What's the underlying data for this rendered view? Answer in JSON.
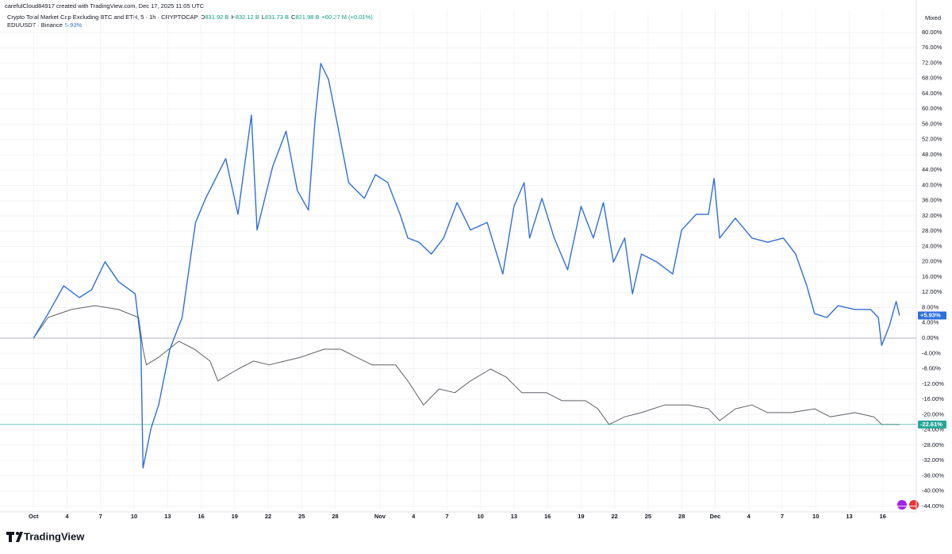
{
  "header": {
    "credit": "carefulCloud84917 created with TradingView.com, Dec 17, 2025 11:05 UTC",
    "brand": "TradingView"
  },
  "chart_data": {
    "type": "line",
    "legend_lines": [
      {
        "title": "Crypto Total Market Cap Excluding BTC and ETH, 5 · 1h · CRYPTOCAP",
        "fields": [
          {
            "label": "O",
            "value": "831.92 B"
          },
          {
            "label": "H",
            "value": "832.12 B"
          },
          {
            "label": "L",
            "value": "831.73 B"
          },
          {
            "label": "C",
            "value": "831.98 B"
          }
        ],
        "change": "+60.27 M (+0.01%)"
      },
      {
        "title": "EDUUSDT · Binance",
        "change": "5.93%"
      }
    ],
    "scale_mode": "Mixed",
    "xlim": [
      -3,
      79
    ],
    "xticks": [
      {
        "value": 0,
        "label": "Oct"
      },
      {
        "value": 3,
        "label": "4"
      },
      {
        "value": 6,
        "label": "7"
      },
      {
        "value": 9,
        "label": "10"
      },
      {
        "value": 12,
        "label": "13"
      },
      {
        "value": 15,
        "label": "16"
      },
      {
        "value": 18,
        "label": "19"
      },
      {
        "value": 21,
        "label": "22"
      },
      {
        "value": 24,
        "label": "25"
      },
      {
        "value": 27,
        "label": "28"
      },
      {
        "value": 31,
        "label": "Nov"
      },
      {
        "value": 34,
        "label": "4"
      },
      {
        "value": 37,
        "label": "7"
      },
      {
        "value": 40,
        "label": "10"
      },
      {
        "value": 43,
        "label": "13"
      },
      {
        "value": 46,
        "label": "16"
      },
      {
        "value": 49,
        "label": "19"
      },
      {
        "value": 52,
        "label": "22"
      },
      {
        "value": 55,
        "label": "25"
      },
      {
        "value": 58,
        "label": "28"
      },
      {
        "value": 61,
        "label": "Dec"
      },
      {
        "value": 64,
        "label": "4"
      },
      {
        "value": 67,
        "label": "7"
      },
      {
        "value": 70,
        "label": "10"
      },
      {
        "value": 73,
        "label": "13"
      },
      {
        "value": 76,
        "label": "16"
      }
    ],
    "ylim": [
      -45,
      86
    ],
    "yticks": [
      {
        "value": 80,
        "label": "80.00%"
      },
      {
        "value": 76,
        "label": "76.00%"
      },
      {
        "value": 72,
        "label": "72.00%"
      },
      {
        "value": 68,
        "label": "68.00%"
      },
      {
        "value": 64,
        "label": "64.00%"
      },
      {
        "value": 60,
        "label": "60.00%"
      },
      {
        "value": 56,
        "label": "56.00%"
      },
      {
        "value": 52,
        "label": "52.00%"
      },
      {
        "value": 48,
        "label": "48.00%"
      },
      {
        "value": 44,
        "label": "44.00%"
      },
      {
        "value": 40,
        "label": "40.00%"
      },
      {
        "value": 36,
        "label": "36.00%"
      },
      {
        "value": 32,
        "label": "32.00%"
      },
      {
        "value": 28,
        "label": "28.00%"
      },
      {
        "value": 24,
        "label": "24.00%"
      },
      {
        "value": 20,
        "label": "20.00%"
      },
      {
        "value": 16,
        "label": "16.00%"
      },
      {
        "value": 12,
        "label": "12.00%"
      },
      {
        "value": 8,
        "label": "8.00%"
      },
      {
        "value": 4,
        "label": "4.00%"
      },
      {
        "value": 0,
        "label": "0.00%"
      },
      {
        "value": -4,
        "label": "-4.00%"
      },
      {
        "value": -8,
        "label": "-8.00%"
      },
      {
        "value": -12,
        "label": "-12.00%"
      },
      {
        "value": -16,
        "label": "-16.00%"
      },
      {
        "value": -20,
        "label": "-20.00%"
      },
      {
        "value": -24,
        "label": "-24.00%"
      },
      {
        "value": -28,
        "label": "-28.00%"
      },
      {
        "value": -32,
        "label": "-32.00%"
      },
      {
        "value": -36,
        "label": "-36.00%"
      },
      {
        "value": -40,
        "label": "-40.00%"
      },
      {
        "value": -44,
        "label": "-44.00%"
      }
    ],
    "grid": true,
    "series": [
      {
        "name": "EDUUSDT · Binance",
        "color": "#2e6fdc",
        "width": 1.4,
        "x": [
          0,
          1.3,
          2.7,
          4.1,
          5.2,
          6.4,
          7.6,
          9.1,
          9.6,
          9.8,
          10.5,
          11.2,
          12.2,
          13.3,
          14,
          14.5,
          15.4,
          17.2,
          18.3,
          19.5,
          20,
          21.4,
          22.6,
          23.6,
          24.6,
          25.2,
          25.7,
          26.4,
          27.1,
          28.2,
          29.6,
          30.6,
          31.7,
          32.8,
          33.5,
          34.5,
          35.6,
          36.7,
          37.9,
          39.1,
          40.6,
          42,
          43,
          43.9,
          44.4,
          45.5,
          46.6,
          47.8,
          49,
          50.1,
          51,
          51.9,
          52.9,
          53.6,
          54.4,
          55.8,
          57.2,
          58,
          59.3,
          60.4,
          60.9,
          61.4,
          62.8,
          64.3,
          65.7,
          67.1,
          68.2,
          69.2,
          69.9,
          71,
          72,
          73.5,
          74.9,
          75.6,
          75.9,
          76.6,
          77.2,
          77.5
        ],
        "values": [
          0,
          6.4,
          13.7,
          10.6,
          12.7,
          20,
          14.8,
          11.6,
          -0.8,
          -34,
          -23.7,
          -17.5,
          -2.9,
          5.4,
          20,
          30.3,
          36.6,
          47,
          32.4,
          58.4,
          28.3,
          44.9,
          54.2,
          38.7,
          33.5,
          57.4,
          71.9,
          67.7,
          57.4,
          40.7,
          36.6,
          42.8,
          40.7,
          32.4,
          26.2,
          25.1,
          22,
          26.2,
          35.5,
          28.3,
          30.3,
          16.8,
          34.5,
          40.7,
          26.2,
          36.6,
          26.2,
          17.9,
          34.5,
          26.2,
          35.5,
          19.9,
          26.2,
          11.6,
          22,
          19.9,
          16.8,
          28.3,
          32.4,
          32.4,
          41.8,
          26.2,
          31.4,
          26.2,
          25.1,
          26.2,
          22,
          13.7,
          6.4,
          5.4,
          8.5,
          7.5,
          7.5,
          5.4,
          -1.9,
          3.3,
          9.6,
          5.93
        ],
        "last": {
          "value": 5.93,
          "label": "+5.93%"
        }
      },
      {
        "name": "Crypto Total Market Cap Excluding BTC and ETH, 5 · 1h · CRYPTOCAP",
        "color": "#5f6168",
        "width": 1,
        "x": [
          0,
          1.3,
          3.4,
          5.5,
          7.6,
          9.4,
          9.8,
          10.1,
          11.2,
          13,
          14.4,
          15.8,
          16.5,
          18.3,
          19.7,
          21.1,
          22.5,
          23.9,
          26,
          27.5,
          28.9,
          30.3,
          32.4,
          33.5,
          34.9,
          36.3,
          37.7,
          39.1,
          40.9,
          42.3,
          43.7,
          45.9,
          47.3,
          49.4,
          50.5,
          51.5,
          52.9,
          54.4,
          56.5,
          58.6,
          60.4,
          61.4,
          62.8,
          64.3,
          65.7,
          67.8,
          69.9,
          71.3,
          73.5,
          75.2,
          75.9,
          77.5
        ],
        "values": [
          0,
          5.4,
          7.5,
          8.5,
          7.5,
          5.4,
          -2.9,
          -7,
          -5,
          -0.8,
          -2.9,
          -6,
          -11.2,
          -8.1,
          -6,
          -7,
          -6,
          -5,
          -2.9,
          -2.9,
          -5,
          -7,
          -7,
          -11.2,
          -17.5,
          -13.3,
          -14.3,
          -11.2,
          -8.1,
          -10.2,
          -14.3,
          -14.3,
          -16.4,
          -16.4,
          -18.5,
          -22.6,
          -20.6,
          -19.5,
          -17.5,
          -17.5,
          -18.5,
          -21.6,
          -18.5,
          -17.5,
          -19.5,
          -19.5,
          -18.5,
          -20.6,
          -19.5,
          -20.6,
          -22.6,
          -22.61
        ],
        "last": {
          "value": -22.61,
          "label": "-22.61%"
        },
        "last_color": "#26a69a"
      }
    ]
  }
}
